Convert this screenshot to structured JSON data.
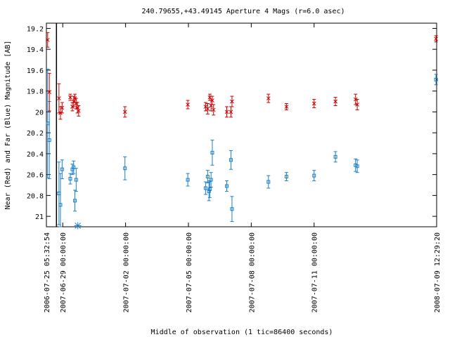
{
  "chart_data": {
    "type": "scatter",
    "title": "240.79655,+43.49145   Aperture 4 Mags (r=6.0 asec)",
    "xlabel": "Middle of observation (1 tic=86400 seconds)",
    "ylabel": "Near (Red) and Far (Blue) Magnitude [AB]",
    "ylim": [
      21.1,
      19.15
    ],
    "y_inverted": true,
    "grid": false,
    "x_axis_unit": "day",
    "xlim": [
      -0.28,
      18.35
    ],
    "x_tick_labels": [
      {
        "label": "2006-07-25 05:32:54",
        "x": -0.28
      },
      {
        "label": "2007-06-29 00:00:00",
        "x": 0.5
      },
      {
        "label": "2007-07-02 00:00:00",
        "x": 3.5
      },
      {
        "label": "2007-07-05 00:00:00",
        "x": 6.5
      },
      {
        "label": "2007-07-08 00:00:00",
        "x": 9.5
      },
      {
        "label": "2007-07-11 00:00:00",
        "x": 12.5
      },
      {
        "label": "2008-07-09 12:29:20",
        "x": 18.35
      }
    ],
    "y_ticks": [
      19.2,
      19.4,
      19.6,
      19.8,
      20,
      20.2,
      20.4,
      20.6,
      20.8,
      21
    ],
    "x_break": 0.2,
    "series": [
      {
        "name": "Near",
        "color": "#cc0000",
        "marker": "cross",
        "points": [
          {
            "x": -0.22,
            "y": 19.31,
            "err": 0.07
          },
          {
            "x": -0.14,
            "y": 19.81,
            "err": 0.18
          },
          {
            "x": 0.32,
            "y": 19.87,
            "err": 0.14
          },
          {
            "x": 0.39,
            "y": 20.01,
            "err": 0.06
          },
          {
            "x": 0.47,
            "y": 19.96,
            "err": 0.05
          },
          {
            "x": 0.86,
            "y": 19.86,
            "err": 0.03
          },
          {
            "x": 0.96,
            "y": 19.95,
            "err": 0.04
          },
          {
            "x": 1.02,
            "y": 19.9,
            "err": 0.05
          },
          {
            "x": 1.08,
            "y": 19.87,
            "err": 0.04
          },
          {
            "x": 1.14,
            "y": 19.92,
            "err": 0.05
          },
          {
            "x": 1.2,
            "y": 19.96,
            "err": 0.05
          },
          {
            "x": 1.26,
            "y": 19.99,
            "err": 0.05
          },
          {
            "x": 3.47,
            "y": 20.0,
            "err": 0.05
          },
          {
            "x": 6.47,
            "y": 19.93,
            "err": 0.04
          },
          {
            "x": 7.32,
            "y": 19.95,
            "err": 0.04
          },
          {
            "x": 7.42,
            "y": 19.97,
            "err": 0.05
          },
          {
            "x": 7.52,
            "y": 19.86,
            "err": 0.03
          },
          {
            "x": 7.58,
            "y": 19.94,
            "err": 0.05
          },
          {
            "x": 7.64,
            "y": 19.89,
            "err": 0.04
          },
          {
            "x": 7.7,
            "y": 19.98,
            "err": 0.05
          },
          {
            "x": 8.33,
            "y": 20.0,
            "err": 0.05
          },
          {
            "x": 8.53,
            "y": 20.0,
            "err": 0.05
          },
          {
            "x": 8.58,
            "y": 19.9,
            "err": 0.05
          },
          {
            "x": 10.32,
            "y": 19.87,
            "err": 0.04
          },
          {
            "x": 11.18,
            "y": 19.95,
            "err": 0.03
          },
          {
            "x": 12.5,
            "y": 19.92,
            "err": 0.04
          },
          {
            "x": 13.52,
            "y": 19.9,
            "err": 0.04
          },
          {
            "x": 14.48,
            "y": 19.88,
            "err": 0.05
          },
          {
            "x": 14.56,
            "y": 19.93,
            "err": 0.05
          },
          {
            "x": 18.32,
            "y": 19.3,
            "err": 0.03
          }
        ]
      },
      {
        "name": "Far",
        "color": "#1a7fc8",
        "marker": "box",
        "points": [
          {
            "x": -0.22,
            "y": 20.11,
            "err": 0.52
          },
          {
            "x": -0.14,
            "y": 20.27,
            "err": 0.37
          },
          {
            "x": 0.32,
            "y": 20.78,
            "err": 0.3
          },
          {
            "x": 0.39,
            "y": 20.89,
            "err": 0.3
          },
          {
            "x": 0.47,
            "y": 20.55,
            "err": 0.09
          },
          {
            "x": 0.86,
            "y": 20.64,
            "err": 0.05
          },
          {
            "x": 0.96,
            "y": 20.55,
            "err": 0.05
          },
          {
            "x": 1.02,
            "y": 20.53,
            "err": 0.06
          },
          {
            "x": 1.08,
            "y": 20.85,
            "err": 0.1
          },
          {
            "x": 1.14,
            "y": 20.65,
            "err": 0.11
          },
          {
            "x": 3.47,
            "y": 20.54,
            "err": 0.11
          },
          {
            "x": 6.47,
            "y": 20.65,
            "err": 0.06
          },
          {
            "x": 7.32,
            "y": 20.73,
            "err": 0.06
          },
          {
            "x": 7.42,
            "y": 20.62,
            "err": 0.06
          },
          {
            "x": 7.48,
            "y": 20.76,
            "err": 0.09
          },
          {
            "x": 7.52,
            "y": 20.74,
            "err": 0.08
          },
          {
            "x": 7.58,
            "y": 20.65,
            "err": 0.07
          },
          {
            "x": 7.64,
            "y": 20.39,
            "err": 0.12
          },
          {
            "x": 8.33,
            "y": 20.71,
            "err": 0.05
          },
          {
            "x": 8.53,
            "y": 20.46,
            "err": 0.09
          },
          {
            "x": 8.58,
            "y": 20.93,
            "err": 0.12
          },
          {
            "x": 10.32,
            "y": 20.67,
            "err": 0.06
          },
          {
            "x": 11.18,
            "y": 20.62,
            "err": 0.04
          },
          {
            "x": 12.5,
            "y": 20.61,
            "err": 0.05
          },
          {
            "x": 13.52,
            "y": 20.43,
            "err": 0.05
          },
          {
            "x": 14.48,
            "y": 20.51,
            "err": 0.06
          },
          {
            "x": 14.56,
            "y": 20.52,
            "err": 0.06
          },
          {
            "x": 18.32,
            "y": 19.69,
            "err": 0.05
          }
        ]
      }
    ],
    "limit_markers": [
      {
        "x": 1.22,
        "y": 21.09,
        "color": "#1a7fc8",
        "marker": "asterisk"
      }
    ]
  }
}
